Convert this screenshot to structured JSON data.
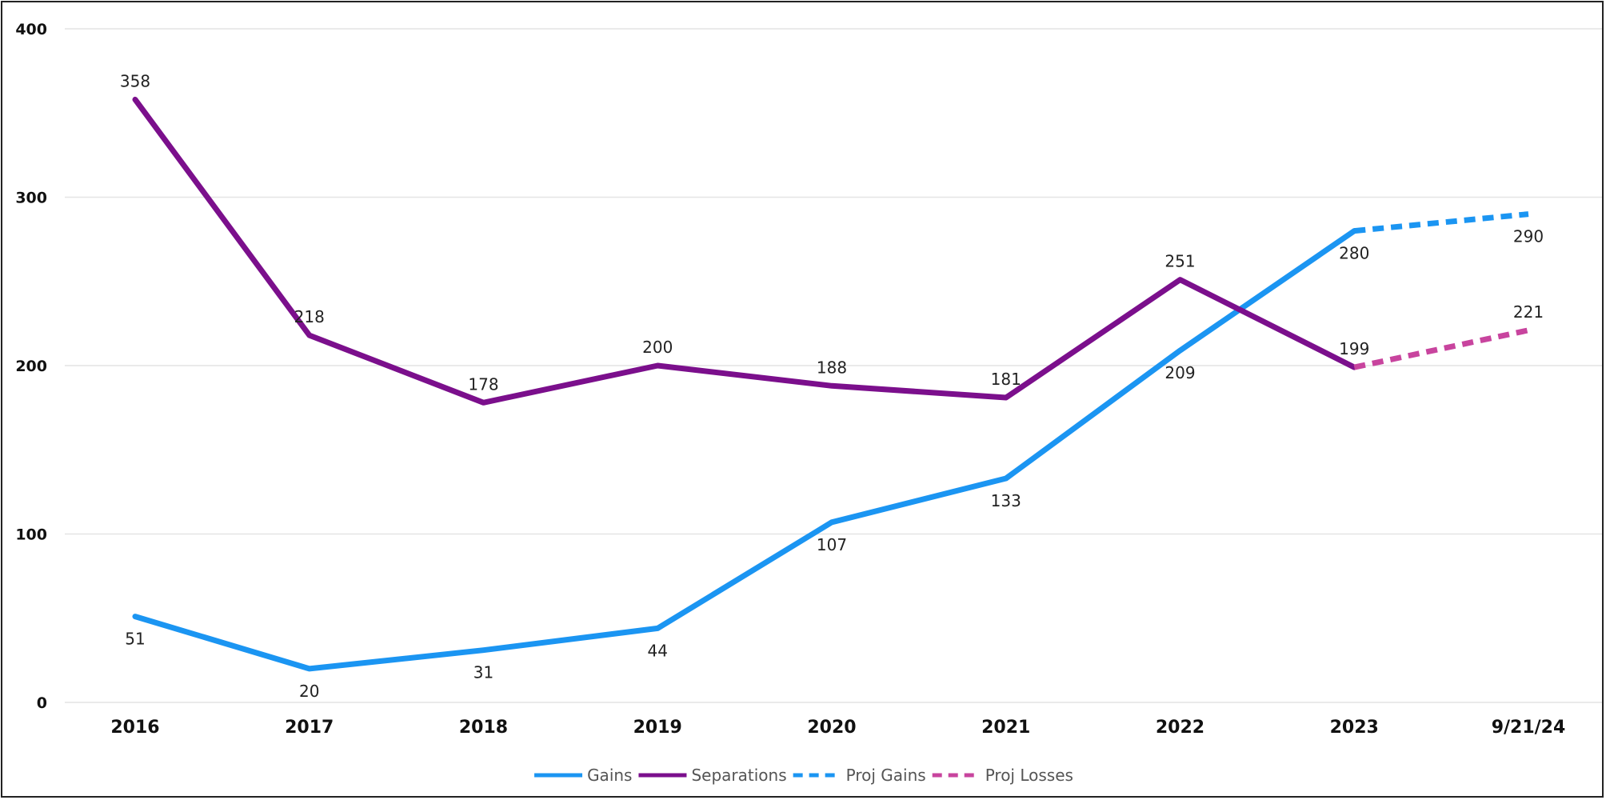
{
  "chart_data": {
    "type": "line",
    "categories": [
      "2016",
      "2017",
      "2018",
      "2019",
      "2020",
      "2021",
      "2022",
      "2023",
      "9/21/24"
    ],
    "ylim": [
      0,
      400
    ],
    "yticks": [
      0,
      100,
      200,
      300,
      400
    ],
    "grid": true,
    "legend_position": "bottom-center",
    "series": [
      {
        "name": "Gains",
        "color": "#1b95f2",
        "dashed": false,
        "points": [
          {
            "x": "2016",
            "y": 51
          },
          {
            "x": "2017",
            "y": 20
          },
          {
            "x": "2018",
            "y": 31
          },
          {
            "x": "2019",
            "y": 44
          },
          {
            "x": "2020",
            "y": 107
          },
          {
            "x": "2021",
            "y": 133
          },
          {
            "x": "2022",
            "y": 209
          },
          {
            "x": "2023",
            "y": 280
          }
        ]
      },
      {
        "name": "Separations",
        "color": "#7b0f8c",
        "dashed": false,
        "points": [
          {
            "x": "2016",
            "y": 358
          },
          {
            "x": "2017",
            "y": 218
          },
          {
            "x": "2018",
            "y": 178
          },
          {
            "x": "2019",
            "y": 200
          },
          {
            "x": "2020",
            "y": 188
          },
          {
            "x": "2021",
            "y": 181
          },
          {
            "x": "2022",
            "y": 251
          },
          {
            "x": "2023",
            "y": 199
          }
        ]
      },
      {
        "name": "Proj Gains",
        "color": "#1b95f2",
        "dashed": true,
        "points": [
          {
            "x": "2023",
            "y": 280
          },
          {
            "x": "9/21/24",
            "y": 290
          }
        ]
      },
      {
        "name": "Proj Losses",
        "color": "#c8449e",
        "dashed": true,
        "points": [
          {
            "x": "2023",
            "y": 199
          },
          {
            "x": "9/21/24",
            "y": 221
          }
        ]
      }
    ],
    "data_labels": [
      {
        "series": "Gains",
        "x": "2016",
        "text": "51",
        "pos": "below"
      },
      {
        "series": "Gains",
        "x": "2017",
        "text": "20",
        "pos": "below"
      },
      {
        "series": "Gains",
        "x": "2018",
        "text": "31",
        "pos": "below"
      },
      {
        "series": "Gains",
        "x": "2019",
        "text": "44",
        "pos": "below"
      },
      {
        "series": "Gains",
        "x": "2020",
        "text": "107",
        "pos": "below"
      },
      {
        "series": "Gains",
        "x": "2021",
        "text": "133",
        "pos": "below"
      },
      {
        "series": "Gains",
        "x": "2022",
        "text": "209",
        "pos": "below"
      },
      {
        "series": "Gains",
        "x": "2023",
        "text": "280",
        "pos": "below"
      },
      {
        "series": "Proj Gains",
        "x": "9/21/24",
        "text": "290",
        "pos": "below"
      },
      {
        "series": "Separations",
        "x": "2016",
        "text": "358",
        "pos": "above"
      },
      {
        "series": "Separations",
        "x": "2017",
        "text": "218",
        "pos": "above"
      },
      {
        "series": "Separations",
        "x": "2018",
        "text": "178",
        "pos": "above"
      },
      {
        "series": "Separations",
        "x": "2019",
        "text": "200",
        "pos": "above"
      },
      {
        "series": "Separations",
        "x": "2020",
        "text": "188",
        "pos": "above"
      },
      {
        "series": "Separations",
        "x": "2021",
        "text": "181",
        "pos": "above"
      },
      {
        "series": "Separations",
        "x": "2022",
        "text": "251",
        "pos": "above"
      },
      {
        "series": "Separations",
        "x": "2023",
        "text": "199",
        "pos": "above"
      },
      {
        "series": "Proj Losses",
        "x": "9/21/24",
        "text": "221",
        "pos": "above"
      }
    ]
  }
}
